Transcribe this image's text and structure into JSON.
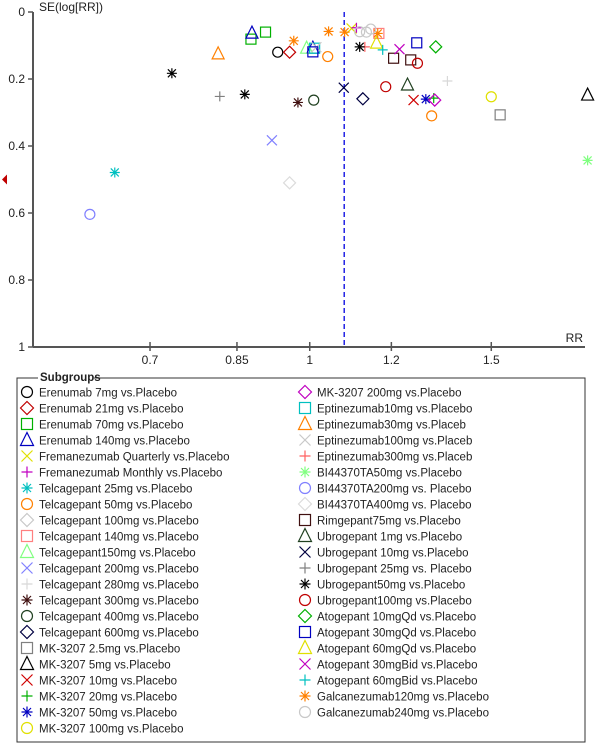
{
  "chart_data": {
    "type": "scatter",
    "title": "",
    "xlabel": "RR",
    "ylabel": "SE(log[RR])",
    "x_scale": "log",
    "xlim": [
      0.539,
      1.87
    ],
    "ylim": [
      0,
      1
    ],
    "y_inverted": true,
    "xticks": [
      0.7,
      0.85,
      1,
      1.2,
      1.5
    ],
    "yticks": [
      0,
      0.2,
      0.4,
      0.6,
      0.8,
      1
    ],
    "xtick_labels": [
      "0.7",
      "0.85",
      "1",
      "1.2",
      "1.5"
    ],
    "ytick_labels": [
      "0",
      "0.2",
      "0.4",
      "0.6",
      "0.8",
      "1"
    ],
    "reference_line": {
      "rr": 1.08,
      "style": "dashed",
      "color": "#0000e0"
    },
    "left_marker": {
      "se": 0.5,
      "color": "#c00000"
    },
    "legend_title": "Subgroups",
    "legend_position": "bottom",
    "series": [
      {
        "name": "Erenumab 7mg vs.Placebo",
        "marker": "circle",
        "color": "#000000",
        "points": [
          [
            0.931,
            0.12
          ]
        ]
      },
      {
        "name": "Erenumab 21mg vs.Placebo",
        "marker": "diamond",
        "color": "#c00000",
        "points": [
          [
            0.956,
            0.12
          ]
        ]
      },
      {
        "name": "Erenumab 70mg vs.Placebo",
        "marker": "square",
        "color": "#00b000",
        "points": [
          [
            0.877,
            0.081
          ],
          [
            0.906,
            0.06
          ]
        ]
      },
      {
        "name": "Erenumab 140mg vs.Placebo",
        "marker": "triangle",
        "color": "#0000c0",
        "points": [
          [
            0.879,
            0.063
          ],
          [
            1.007,
            0.108
          ]
        ]
      },
      {
        "name": "Fremanezumab Quarterly vs.Placebo",
        "marker": "x",
        "color": "#e0e000",
        "points": [
          [
            1.098,
            0.049
          ]
        ]
      },
      {
        "name": "Fremanezumab Monthly vs.Placebo",
        "marker": "plus",
        "color": "#c000c0",
        "points": [
          [
            1.11,
            0.047
          ]
        ]
      },
      {
        "name": "Telcagepant 25mg vs.Placebo",
        "marker": "asterisk",
        "color": "#00c0c0",
        "points": [
          [
            0.647,
            0.479
          ]
        ]
      },
      {
        "name": "Telcagepant 50mg vs.Placebo",
        "marker": "circle",
        "color": "#ff8000",
        "points": [
          [
            1.041,
            0.133
          ],
          [
            1.313,
            0.31
          ]
        ]
      },
      {
        "name": "Telcagepant 100mg vs.Placebo",
        "marker": "diamond",
        "color": "#c8c8c8",
        "points": []
      },
      {
        "name": "Telcagepant 140mg vs.Placebo",
        "marker": "square",
        "color": "#ff8080",
        "points": [
          [
            1.167,
            0.064
          ]
        ]
      },
      {
        "name": "Telcagepant150mg vs.Placebo",
        "marker": "triangle",
        "color": "#80ff80",
        "points": [
          [
            0.993,
            0.108
          ]
        ]
      },
      {
        "name": "Telcagepant 200mg vs.Placebo",
        "marker": "x",
        "color": "#8080ff",
        "points": [
          [
            0.919,
            0.383
          ]
        ]
      },
      {
        "name": "Telcagepant 280mg vs.Placebo",
        "marker": "plus",
        "color": "#d8d8d8",
        "points": [
          [
            1.36,
            0.206
          ]
        ]
      },
      {
        "name": "Telcagepant 300mg vs.Placebo",
        "marker": "asterisk",
        "color": "#401010",
        "points": [
          [
            0.974,
            0.27
          ]
        ]
      },
      {
        "name": "Telcagepant 400mg vs.Placebo",
        "marker": "circle",
        "color": "#204020",
        "points": [
          [
            1.009,
            0.263
          ]
        ]
      },
      {
        "name": "Telcagepant 600mg vs.Placebo",
        "marker": "diamond",
        "color": "#000040",
        "points": [
          [
            1.126,
            0.259
          ]
        ]
      },
      {
        "name": "MK-3207 2.5mg vs.Placebo",
        "marker": "square",
        "color": "#808080",
        "points": [
          [
            1.53,
            0.307
          ]
        ]
      },
      {
        "name": "MK-3207 5mg vs.Placebo",
        "marker": "triangle",
        "color": "#000000",
        "points": [
          [
            1.86,
            0.248
          ]
        ]
      },
      {
        "name": "MK-3207 10mg vs.Placebo",
        "marker": "x",
        "color": "#d00000",
        "points": [
          [
            1.261,
            0.263
          ]
        ]
      },
      {
        "name": "MK-3207 20mg vs.Placebo",
        "marker": "plus",
        "color": "#00b000",
        "points": [
          [
            1.319,
            0.257
          ]
        ]
      },
      {
        "name": "MK-3207 50mg vs.Placebo",
        "marker": "asterisk",
        "color": "#0000c0",
        "points": [
          [
            1.296,
            0.26
          ]
        ]
      },
      {
        "name": "MK-3207 100mg vs.Placebo",
        "marker": "circle",
        "color": "#e0e000",
        "points": [
          [
            1.5,
            0.253
          ]
        ]
      },
      {
        "name": "MK-3207 200mg vs.Placebo",
        "marker": "diamond",
        "color": "#c000c0",
        "points": [
          [
            1.322,
            0.263
          ]
        ]
      },
      {
        "name": "Eptinezumab10mg vs.Placebo",
        "marker": "square",
        "color": "#00c0c0",
        "points": [
          [
            1.011,
            0.108
          ]
        ]
      },
      {
        "name": "Eptinezumab30mg vs.Placeb",
        "marker": "triangle",
        "color": "#ff8000",
        "points": [
          [
            0.815,
            0.125
          ]
        ]
      },
      {
        "name": "Eptinezumab100mg vs.Placeb",
        "marker": "x",
        "color": "#c8c8c8",
        "points": [
          [
            1.015,
            0.105
          ]
        ]
      },
      {
        "name": "Eptinezumab300mg vs.Placeb",
        "marker": "plus",
        "color": "#ff6060",
        "points": [
          [
            1.131,
            0.104
          ]
        ]
      },
      {
        "name": "BI44370TA50mg vs.Placebo",
        "marker": "asterisk",
        "color": "#80ff80",
        "points": [
          [
            1.86,
            0.443
          ]
        ]
      },
      {
        "name": "BI44370TA200mg vs. Placebo",
        "marker": "circle",
        "color": "#8080ff",
        "points": [
          [
            0.612,
            0.604
          ]
        ]
      },
      {
        "name": "BI44370TA400mg vs. Placebo",
        "marker": "diamond",
        "color": "#dcdcdc",
        "points": [
          [
            0.956,
            0.51
          ]
        ]
      },
      {
        "name": "Rimgepant75mg vs.Placebo",
        "marker": "square",
        "color": "#401010",
        "points": [
          [
            1.206,
            0.138
          ],
          [
            1.253,
            0.143
          ]
        ]
      },
      {
        "name": "Ubrogepant 1mg vs.Placebo",
        "marker": "triangle",
        "color": "#204020",
        "points": [
          [
            1.244,
            0.218
          ]
        ]
      },
      {
        "name": "Ubrogepant 10mg vs.Placebo",
        "marker": "x",
        "color": "#000040",
        "points": [
          [
            1.079,
            0.226
          ]
        ]
      },
      {
        "name": "Ubrogepant 25mg vs. Placebo",
        "marker": "plus",
        "color": "#808080",
        "points": [
          [
            0.818,
            0.252
          ]
        ]
      },
      {
        "name": "Ubrogepant50mg vs.Placebo",
        "marker": "asterisk",
        "color": "#000000",
        "points": [
          [
            0.735,
            0.183
          ],
          [
            0.865,
            0.246
          ],
          [
            1.118,
            0.104
          ]
        ]
      },
      {
        "name": "Ubrogepant100mg vs.Placebo",
        "marker": "circle",
        "color": "#c00000",
        "points": [
          [
            1.272,
            0.153
          ],
          [
            1.185,
            0.223
          ]
        ]
      },
      {
        "name": "Atogepant 10mgQd vs.Placebo",
        "marker": "diamond",
        "color": "#00b000",
        "points": [
          [
            1.325,
            0.104
          ]
        ]
      },
      {
        "name": "Atogepant 30mgQd vs.Placebo",
        "marker": "square",
        "color": "#0000c0",
        "points": [
          [
            1.007,
            0.119
          ],
          [
            1.27,
            0.092
          ]
        ]
      },
      {
        "name": "Atogepant 60mgQd vs.Placebo",
        "marker": "triangle",
        "color": "#e0e000",
        "points": [
          [
            1.161,
            0.093
          ]
        ]
      },
      {
        "name": "Atogepant 30mgBid vs.Placebo",
        "marker": "x",
        "color": "#c000c0",
        "points": [
          [
            1.222,
            0.111
          ]
        ]
      },
      {
        "name": "Atogepant 60mgBid vs.Placebo",
        "marker": "plus",
        "color": "#00c0c0",
        "points": [
          [
            1.177,
            0.113
          ]
        ]
      },
      {
        "name": "Galcanezumab120mg vs.Placebo",
        "marker": "asterisk",
        "color": "#ff8000",
        "points": [
          [
            0.965,
            0.086
          ],
          [
            1.043,
            0.058
          ],
          [
            1.081,
            0.06
          ],
          [
            1.164,
            0.064
          ]
        ]
      },
      {
        "name": "Galcanezumab240mg vs.Placebo",
        "marker": "circle",
        "color": "#c8c8c8",
        "points": [
          [
            1.118,
            0.059
          ],
          [
            1.135,
            0.06
          ],
          [
            1.146,
            0.051
          ]
        ]
      }
    ]
  }
}
